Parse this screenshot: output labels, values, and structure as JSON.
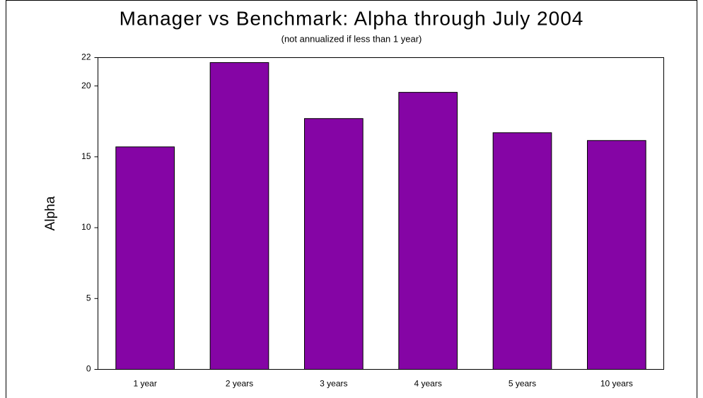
{
  "chart_data": {
    "type": "bar",
    "title": "Manager vs Benchmark: Alpha through July 2004",
    "subtitle": "(not annualized if less than 1 year)",
    "y_label": "Alpha",
    "categories": [
      "1 year",
      "2 years",
      "3 years",
      "4 years",
      "5 years",
      "10 years"
    ],
    "values": [
      15.7,
      21.65,
      17.7,
      19.55,
      16.7,
      16.15
    ],
    "color": "#8505a5",
    "ylim": [
      0,
      22
    ],
    "yticks": [
      0,
      5,
      10,
      15,
      20,
      22
    ],
    "grid": false
  }
}
